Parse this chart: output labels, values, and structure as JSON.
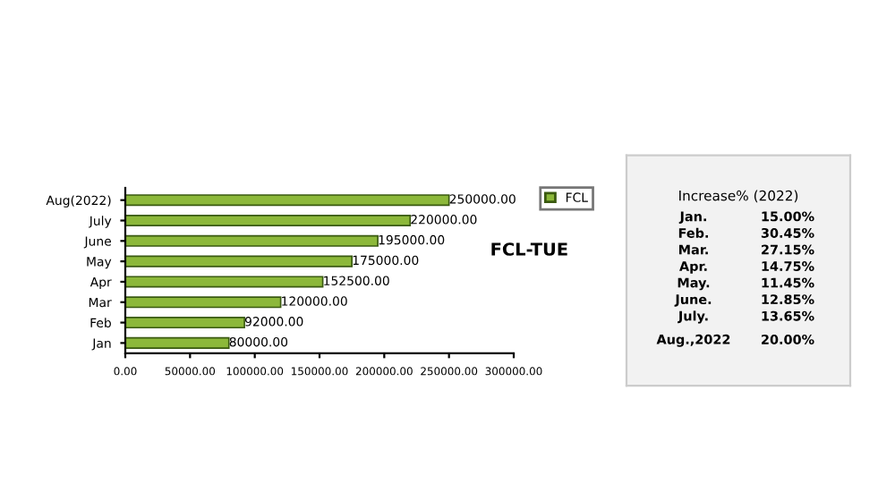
{
  "chart_data": [
    {
      "type": "bar",
      "orientation": "horizontal",
      "categories": [
        "Aug(2022)",
        "July",
        "June",
        "May",
        "Apr",
        "Mar",
        "Feb",
        "Jan"
      ],
      "series": [
        {
          "name": "FCL",
          "color": "#8cb83a",
          "values": [
            250000,
            220000,
            195000,
            175000,
            152500,
            120000,
            92000,
            80000
          ],
          "value_labels": [
            "250000.00",
            "220000.00",
            "195000.00",
            "175000.00",
            "152500.00",
            "120000.00",
            "92000.00",
            "80000.00"
          ]
        }
      ],
      "xlim": [
        0,
        300000
      ],
      "xticks": [
        {
          "value": 0,
          "label": "0.00"
        },
        {
          "value": 50000,
          "label": "50000.00"
        },
        {
          "value": 100000,
          "label": "100000.00"
        },
        {
          "value": 150000,
          "label": "150000.00"
        },
        {
          "value": 200000,
          "label": "200000.00"
        },
        {
          "value": 250000,
          "label": "250000.00"
        },
        {
          "value": 300000,
          "label": "300000.00"
        }
      ],
      "legend": "top right",
      "grid": false,
      "annotations": [
        "FCL-TUE"
      ]
    },
    {
      "type": "other",
      "title": "Increase% (2022)",
      "annotations": [
        "Jan.",
        "15.00%",
        "Feb.",
        "30.45%",
        "Mar.",
        "27.15%",
        "Apr.",
        "14.75%",
        "May.",
        "11.45%",
        "June.",
        "12.85%",
        "July.",
        "13.65%",
        "Aug.,2022",
        "20.00%"
      ]
    }
  ]
}
